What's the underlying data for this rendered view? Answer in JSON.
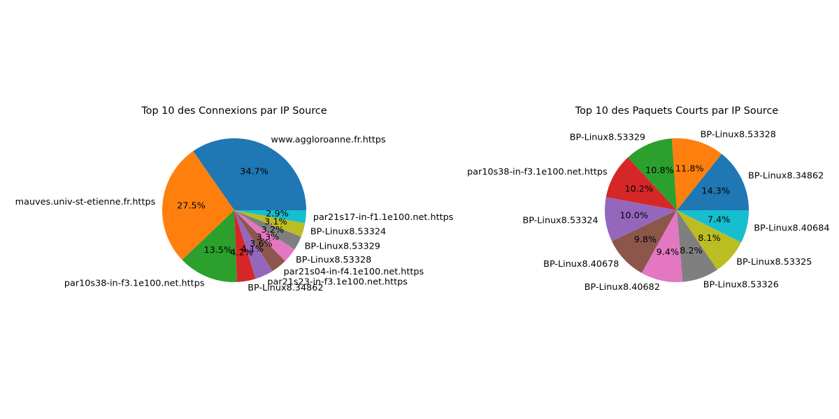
{
  "chart_data": [
    {
      "type": "pie",
      "title": "Top 10 des Connexions par IP Source",
      "categories": [
        "www.aggloroanne.fr.https",
        "mauves.univ-st-etienne.fr.https",
        "par10s38-in-f3.1e100.net.https",
        "BP-Linux8.34862",
        "par21s23-in-f3.1e100.net.https",
        "par21s04-in-f4.1e100.net.https",
        "BP-Linux8.53328",
        "BP-Linux8.53329",
        "BP-Linux8.53324",
        "par21s17-in-f1.1e100.net.https"
      ],
      "values": [
        34.7,
        27.5,
        13.5,
        4.2,
        4.1,
        3.6,
        3.3,
        3.2,
        3.1,
        2.9
      ],
      "value_labels": [
        "34.7%",
        "27.5%",
        "13.5%",
        "4.2%",
        "4.1%",
        "3.6%",
        "3.3%",
        "3.2%",
        "3.1%",
        "2.9%"
      ],
      "start_angle_deg": 0,
      "direction": "counterclockwise",
      "colors": [
        "#1f77b4",
        "#ff7f0e",
        "#2ca02c",
        "#d62728",
        "#9467bd",
        "#8c564b",
        "#e377c2",
        "#7f7f7f",
        "#bcbd22",
        "#17becf"
      ]
    },
    {
      "type": "pie",
      "title": "Top 10 des Paquets Courts par IP Source",
      "categories": [
        "BP-Linux8.34862",
        "BP-Linux8.53328",
        "BP-Linux8.53329",
        "par10s38-in-f3.1e100.net.https",
        "BP-Linux8.53324",
        "BP-Linux8.40678",
        "BP-Linux8.40682",
        "BP-Linux8.53326",
        "BP-Linux8.53325",
        "BP-Linux8.40684"
      ],
      "values": [
        14.3,
        11.8,
        10.8,
        10.2,
        10.0,
        9.8,
        9.4,
        8.2,
        8.1,
        7.4
      ],
      "value_labels": [
        "14.3%",
        "11.8%",
        "10.8%",
        "10.2%",
        "10.0%",
        "9.8%",
        "9.4%",
        "8.2%",
        "8.1%",
        "7.4%"
      ],
      "start_angle_deg": 0,
      "direction": "counterclockwise",
      "colors": [
        "#1f77b4",
        "#ff7f0e",
        "#2ca02c",
        "#d62728",
        "#9467bd",
        "#8c564b",
        "#e377c2",
        "#7f7f7f",
        "#bcbd22",
        "#17becf"
      ]
    }
  ]
}
